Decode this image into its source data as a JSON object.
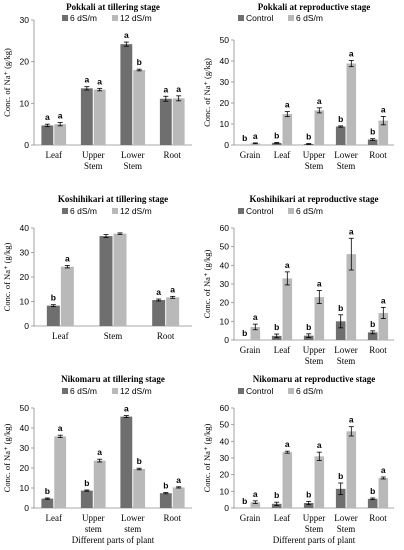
{
  "colors": {
    "dark": "#6f6f6f",
    "light": "#b9b9b9",
    "axis": "#8c8c8c"
  },
  "chart_data": [
    {
      "type": "bar",
      "title": "Pokkali at tillering stage",
      "ylabel": "Conc. of Na⁺ (g/kg)",
      "ylim": [
        0,
        30
      ],
      "yticks": [
        0,
        10,
        20,
        30
      ],
      "categories": [
        [
          "Leaf"
        ],
        [
          "Upper",
          "Stem"
        ],
        [
          "Lower",
          "Stem"
        ],
        [
          "Root"
        ]
      ],
      "series": [
        {
          "name": "6 dS/m",
          "values": [
            4.7,
            13.6,
            24.2,
            11.1
          ],
          "errors": [
            0.3,
            0.4,
            0.5,
            0.6
          ],
          "letters": [
            "a",
            "a",
            "a",
            "a"
          ]
        },
        {
          "name": "12 dS/m",
          "values": [
            5.0,
            13.3,
            18.0,
            11.2
          ],
          "errors": [
            0.4,
            0.3,
            0.2,
            0.6
          ],
          "letters": [
            "a",
            "a",
            "b",
            "a"
          ]
        }
      ],
      "xlabel": ""
    },
    {
      "type": "bar",
      "title": "Pokkali at reproductive stage",
      "ylabel": "Conc. of Na⁺ (g/kg)",
      "ylim": [
        0,
        50
      ],
      "yticks": [
        0,
        10,
        20,
        30,
        40,
        50
      ],
      "categories": [
        [
          "Grain"
        ],
        [
          "Leaf"
        ],
        [
          "Upper",
          "Stem"
        ],
        [
          "Lower",
          "Stem"
        ],
        [
          "Root"
        ]
      ],
      "series": [
        {
          "name": "Control",
          "values": [
            0,
            1.0,
            0.5,
            8.8,
            2.6
          ],
          "errors": [
            0,
            0.2,
            0.2,
            0.3,
            0.4
          ],
          "letters": [
            "b",
            "b",
            "b",
            "b",
            "b"
          ]
        },
        {
          "name": "6 dS/m",
          "values": [
            0.8,
            14.7,
            16.5,
            38.8,
            11.6
          ],
          "errors": [
            0.2,
            1.2,
            1.2,
            1.5,
            2.0
          ],
          "letters": [
            "a",
            "a",
            "a",
            "a",
            "a"
          ]
        }
      ],
      "xlabel": ""
    },
    {
      "type": "bar",
      "title": "Koshihikari at tillering stage",
      "ylabel": "Conc. of Na⁺ (g/kg)",
      "ylim": [
        0,
        40
      ],
      "yticks": [
        0,
        10,
        20,
        30,
        40
      ],
      "categories": [
        [
          "Leaf"
        ],
        [
          "Stem"
        ],
        [
          "Root"
        ]
      ],
      "series": [
        {
          "name": "6 dS/m",
          "values": [
            8.3,
            36.7,
            10.6
          ],
          "errors": [
            0.4,
            0.6,
            0.4
          ],
          "letters": [
            "b",
            "",
            "a"
          ]
        },
        {
          "name": "12 dS/m",
          "values": [
            24.2,
            37.7,
            11.7
          ],
          "errors": [
            0.5,
            0.3,
            0.4
          ],
          "letters": [
            "a",
            "",
            "a"
          ]
        }
      ],
      "xlabel": ""
    },
    {
      "type": "bar",
      "title": "Koshihikari at reproductive stage",
      "ylabel": "Conc. of Na⁺ (g/kg)",
      "ylim": [
        0,
        60
      ],
      "yticks": [
        0,
        10,
        20,
        30,
        40,
        50,
        60
      ],
      "categories": [
        [
          "Grain"
        ],
        [
          "Leaf"
        ],
        [
          "Upper",
          "Stem"
        ],
        [
          "Lower",
          "Stem"
        ],
        [
          "Root"
        ]
      ],
      "series": [
        {
          "name": "Control",
          "values": [
            0,
            2.2,
            2.3,
            10.0,
            4.1
          ],
          "errors": [
            0,
            1.0,
            1.0,
            3.5,
            0.8
          ],
          "letters": [
            "b",
            "b",
            "b",
            "b",
            "b"
          ]
        },
        {
          "name": "6 dS/m",
          "values": [
            7.0,
            33.0,
            23.0,
            46.0,
            14.5
          ],
          "errors": [
            1.5,
            3.5,
            3.5,
            8.5,
            3.0
          ],
          "letters": [
            "a",
            "a",
            "a",
            "a",
            "a"
          ]
        }
      ],
      "xlabel": ""
    },
    {
      "type": "bar",
      "title": "Nikomaru at tillering stage",
      "ylabel": "Conc. of Na⁺ (g/kg)",
      "ylim": [
        0,
        50
      ],
      "yticks": [
        0,
        10,
        20,
        30,
        40,
        50
      ],
      "categories": [
        [
          "Leaf"
        ],
        [
          "Upper",
          "stem"
        ],
        [
          "Lower",
          "stem"
        ],
        [
          "Root"
        ]
      ],
      "series": [
        {
          "name": "6 dS/m",
          "values": [
            4.7,
            8.7,
            45.7,
            7.4
          ],
          "errors": [
            0.3,
            0.3,
            0.5,
            0.3
          ],
          "letters": [
            "b",
            "b",
            "a",
            "b"
          ]
        },
        {
          "name": "12 dS/m",
          "values": [
            35.8,
            23.7,
            19.5,
            10.3
          ],
          "errors": [
            0.6,
            0.7,
            0.4,
            0.3
          ],
          "letters": [
            "a",
            "a",
            "b",
            "a"
          ]
        }
      ],
      "xlabel": "Different parts of plant"
    },
    {
      "type": "bar",
      "title": "Nikomaru at reproductive stage",
      "ylabel": "Conc. of Na⁺ (g/kg)",
      "ylim": [
        0,
        60
      ],
      "yticks": [
        0,
        10,
        20,
        30,
        40,
        50,
        60
      ],
      "categories": [
        [
          "Grain"
        ],
        [
          "Leaf"
        ],
        [
          "Upper",
          "Stem"
        ],
        [
          "Lower",
          "Stem"
        ],
        [
          "Root"
        ]
      ],
      "series": [
        {
          "name": "Control",
          "values": [
            0,
            2.5,
            3.0,
            11.5,
            5.5
          ],
          "errors": [
            0,
            1.0,
            1.0,
            3.5,
            0.5
          ],
          "letters": [
            "b",
            "b",
            "b",
            "b",
            "b"
          ]
        },
        {
          "name": "6 dS/m",
          "values": [
            3.5,
            33.5,
            31.0,
            46.0,
            18.0
          ],
          "errors": [
            0.8,
            0.6,
            2.5,
            2.8,
            0.6
          ],
          "letters": [
            "a",
            "a",
            "a",
            "a",
            "a"
          ]
        }
      ],
      "xlabel": "Different parts of plant"
    }
  ]
}
